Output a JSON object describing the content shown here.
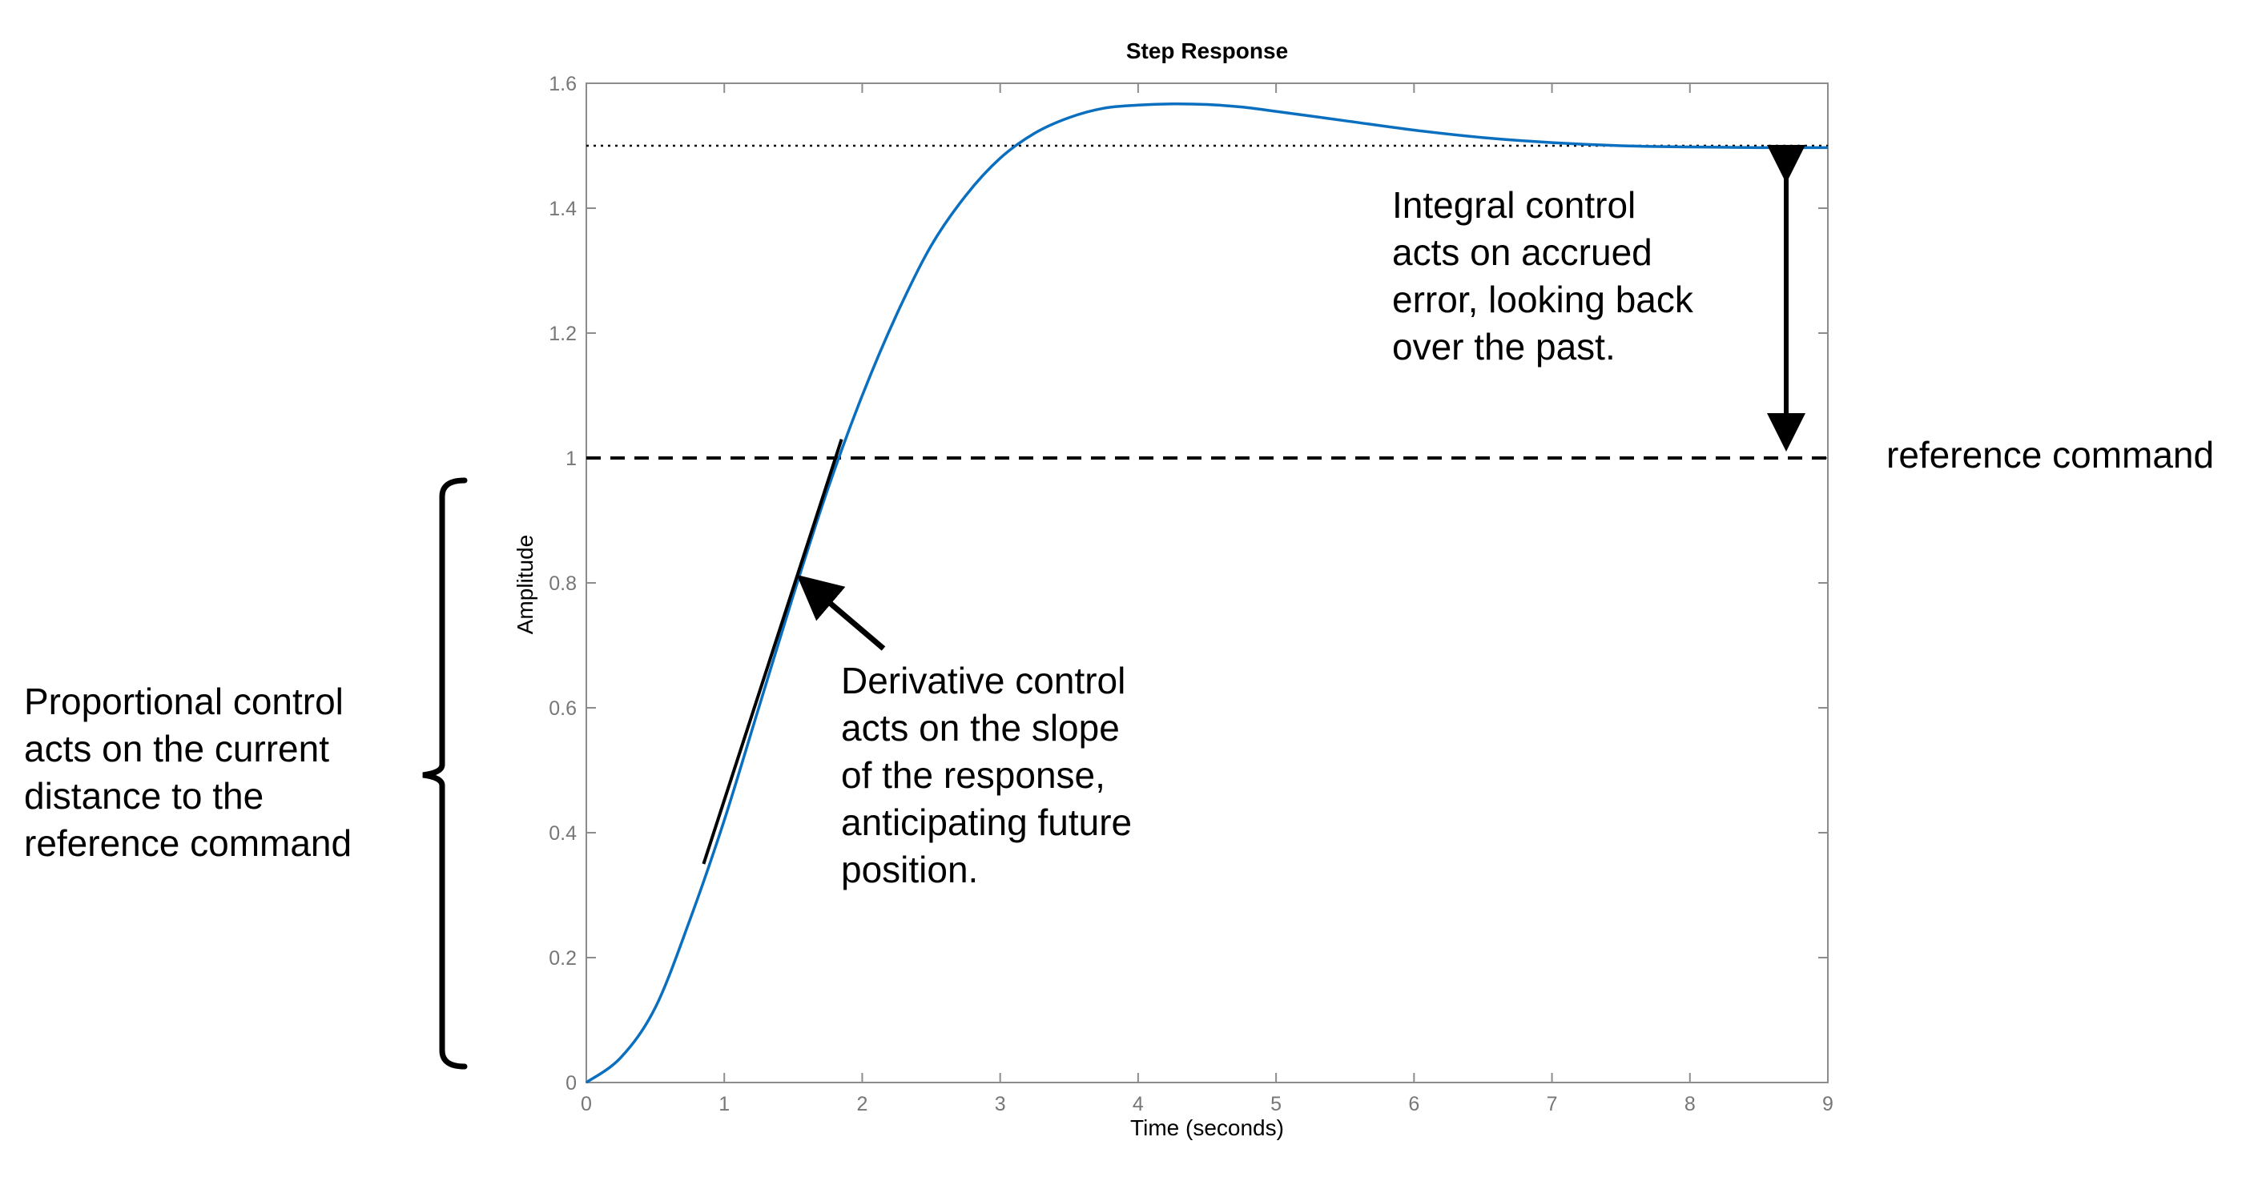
{
  "chart_data": {
    "type": "line",
    "title": "Step Response",
    "xlabel": "Time (seconds)",
    "ylabel": "Amplitude",
    "xlim": [
      0,
      9
    ],
    "ylim": [
      0,
      1.6
    ],
    "xticks": [
      "0",
      "1",
      "2",
      "3",
      "4",
      "5",
      "6",
      "7",
      "8",
      "9"
    ],
    "yticks": [
      "0",
      "0.2",
      "0.4",
      "0.6",
      "0.8",
      "1",
      "1.2",
      "1.4",
      "1.6"
    ],
    "grid": false,
    "series": [
      {
        "color": "#0a6fbf",
        "x": [
          0,
          0.25,
          0.5,
          0.75,
          1.0,
          1.25,
          1.5,
          1.75,
          2.0,
          2.25,
          2.5,
          2.75,
          3.0,
          3.25,
          3.5,
          3.75,
          4.0,
          4.25,
          4.5,
          4.75,
          5.0,
          5.5,
          6.0,
          6.5,
          7.0,
          7.5,
          8.0,
          8.5,
          9.0
        ],
        "values": [
          0,
          0.04,
          0.12,
          0.26,
          0.42,
          0.6,
          0.78,
          0.95,
          1.1,
          1.23,
          1.34,
          1.42,
          1.48,
          1.52,
          1.545,
          1.56,
          1.565,
          1.567,
          1.566,
          1.562,
          1.555,
          1.54,
          1.525,
          1.513,
          1.505,
          1.5,
          1.498,
          1.497,
          1.497
        ]
      }
    ],
    "reference_lines": [
      {
        "label": "reference command",
        "value": 1.0,
        "style": "dashed"
      },
      {
        "value": 1.5,
        "style": "dotted"
      }
    ],
    "tangent_segment": {
      "x": [
        0.85,
        1.85
      ],
      "y": [
        0.35,
        1.03
      ]
    },
    "annotations": {
      "integral": [
        "Integral control",
        "acts on accrued",
        "error, looking back",
        "over the past."
      ],
      "derivative": [
        "Derivative control",
        "acts on the slope",
        "of the response,",
        "anticipating future",
        "position."
      ],
      "proportional": [
        "Proportional control",
        "acts on the current",
        "distance to the",
        "reference command"
      ],
      "reference": "reference command"
    }
  }
}
